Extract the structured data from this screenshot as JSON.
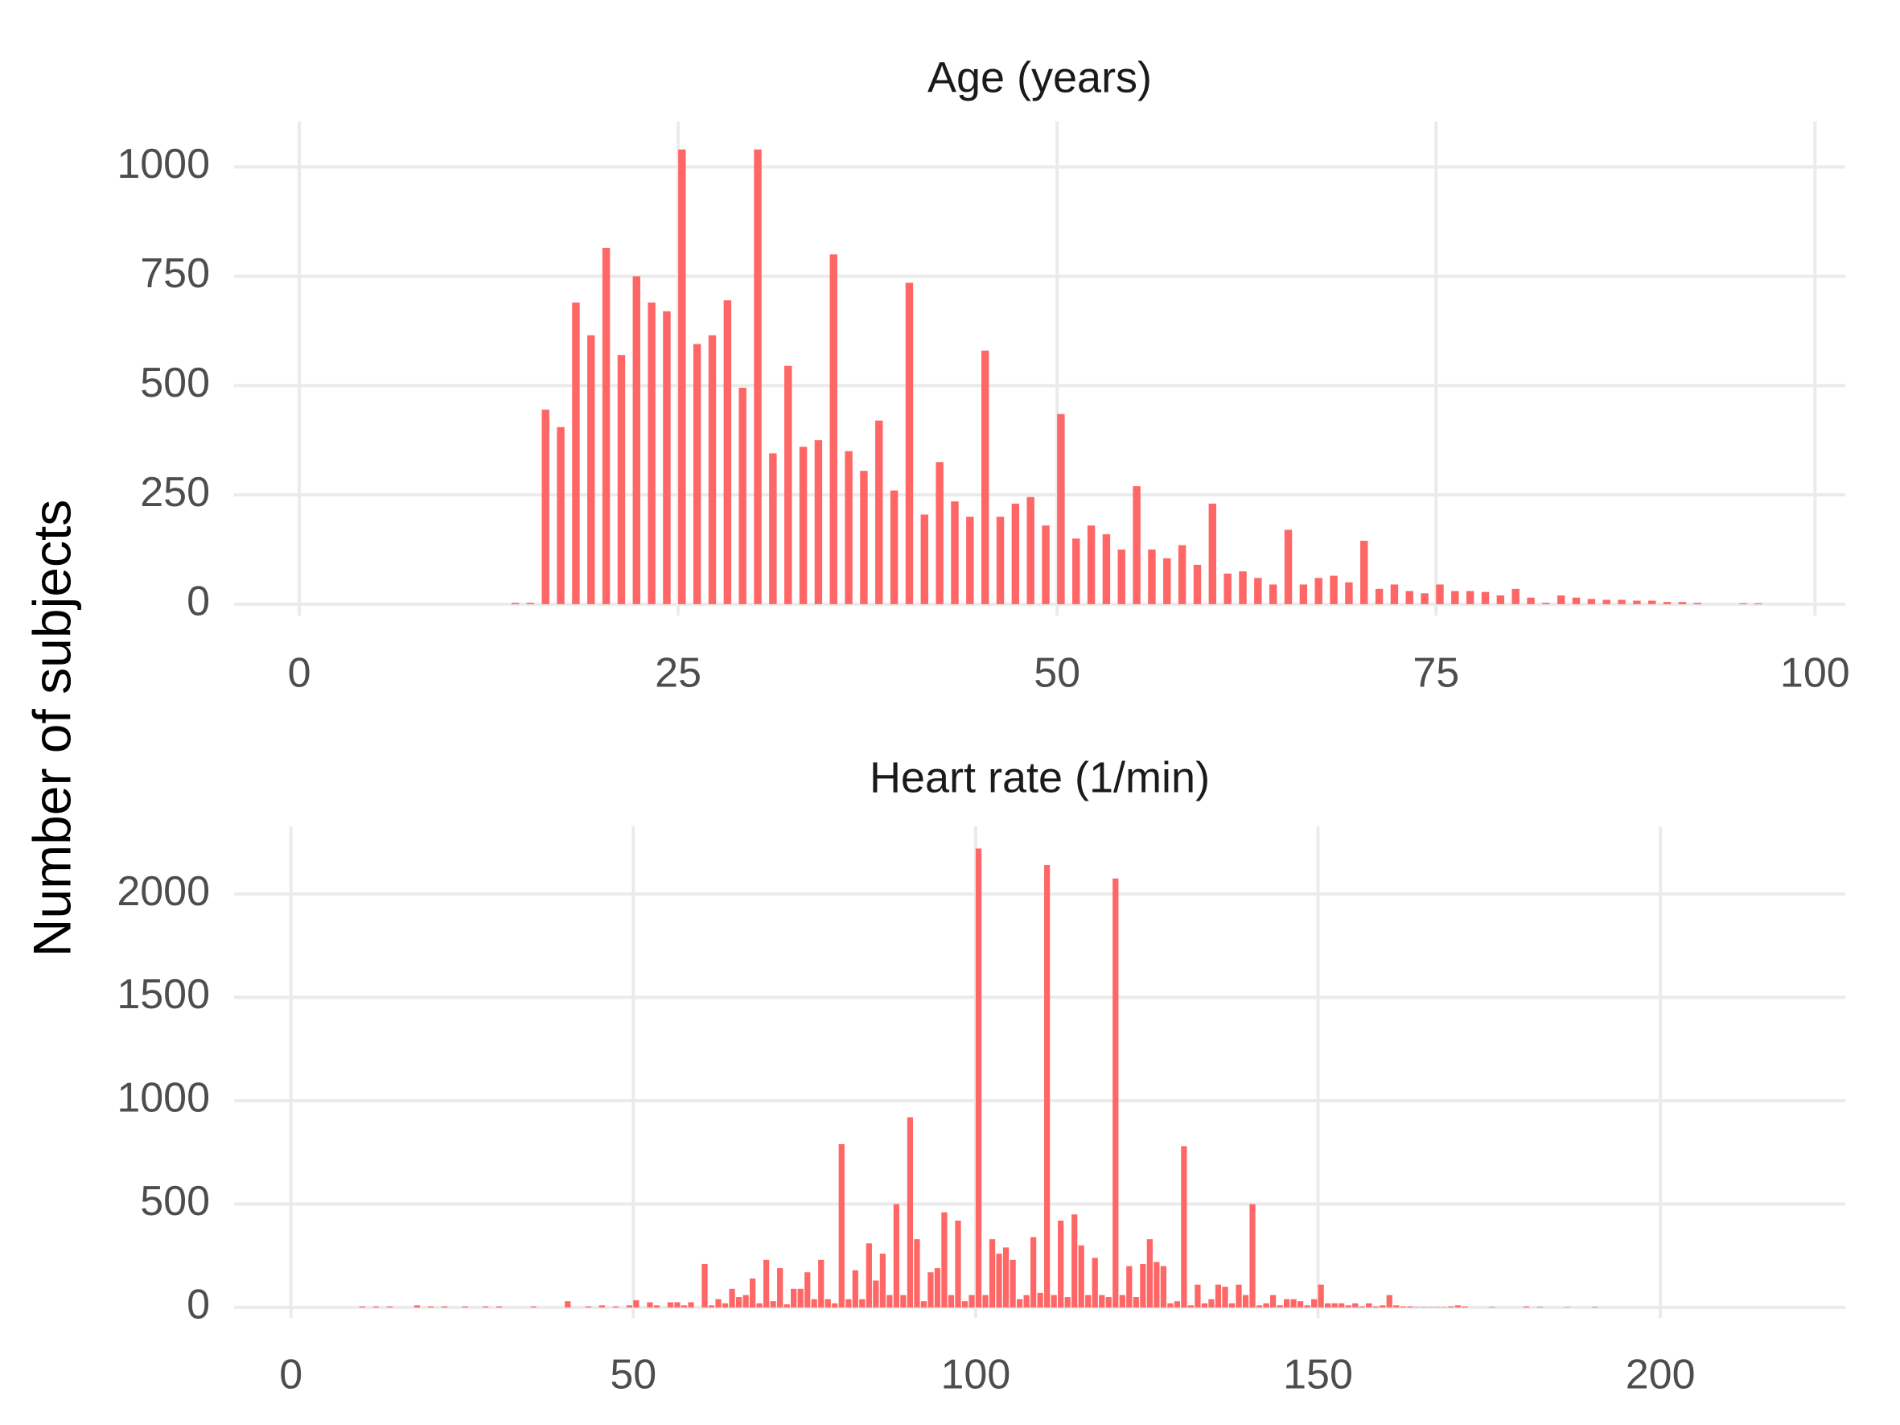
{
  "ylabel": "Number of subjects",
  "chart_data": [
    {
      "type": "bar",
      "title": "Age (years)",
      "color": "#ff6666",
      "grid": true,
      "xlim": [
        -4.3,
        102
      ],
      "xticks": [
        0,
        25,
        50,
        75,
        100
      ],
      "ylim": [
        -26,
        1104
      ],
      "yticks": [
        0,
        250,
        500,
        750,
        1000
      ],
      "x": [
        14,
        15,
        16,
        17,
        18,
        19,
        20,
        21,
        22,
        23,
        24,
        25,
        26,
        27,
        28,
        29,
        30,
        31,
        32,
        33,
        34,
        35,
        36,
        37,
        38,
        39,
        40,
        41,
        42,
        43,
        44,
        45,
        46,
        47,
        48,
        49,
        50,
        51,
        52,
        53,
        54,
        55,
        56,
        57,
        58,
        59,
        60,
        61,
        62,
        63,
        64,
        65,
        66,
        67,
        68,
        69,
        70,
        71,
        72,
        73,
        74,
        75,
        76,
        77,
        78,
        79,
        80,
        81,
        82,
        83,
        84,
        85,
        86,
        87,
        88,
        89,
        90,
        91,
        92,
        95,
        96
      ],
      "values": [
        3,
        3,
        445,
        405,
        690,
        615,
        815,
        570,
        750,
        690,
        670,
        1040,
        595,
        615,
        695,
        495,
        1040,
        345,
        545,
        360,
        375,
        800,
        350,
        305,
        420,
        260,
        735,
        205,
        325,
        235,
        200,
        580,
        200,
        230,
        245,
        180,
        435,
        150,
        180,
        160,
        125,
        270,
        125,
        105,
        135,
        90,
        230,
        70,
        75,
        60,
        45,
        170,
        45,
        60,
        65,
        50,
        145,
        35,
        45,
        30,
        25,
        45,
        30,
        30,
        28,
        20,
        35,
        15,
        3,
        20,
        15,
        12,
        10,
        10,
        8,
        8,
        5,
        5,
        3,
        2,
        2
      ]
    },
    {
      "type": "bar",
      "title": "Heart rate (1/min)",
      "color": "#ff6666",
      "grid": true,
      "xlim": [
        -8.3,
        227
      ],
      "xticks": [
        0,
        50,
        100,
        150,
        200
      ],
      "ylim": [
        -51,
        2327
      ],
      "yticks": [
        0,
        500,
        1000,
        1500,
        2000
      ],
      "x": [
        10,
        12,
        14,
        18,
        20,
        22,
        25,
        28,
        30,
        35,
        40,
        43,
        45,
        47,
        49,
        50,
        52,
        53,
        55,
        56,
        57,
        58,
        60,
        61,
        62,
        63,
        64,
        65,
        66,
        67,
        68,
        69,
        70,
        71,
        72,
        73,
        74,
        75,
        76,
        77,
        78,
        79,
        80,
        81,
        82,
        83,
        84,
        85,
        86,
        87,
        88,
        89,
        90,
        91,
        92,
        93,
        94,
        95,
        96,
        97,
        98,
        99,
        100,
        101,
        102,
        103,
        104,
        105,
        106,
        107,
        108,
        109,
        110,
        111,
        112,
        113,
        114,
        115,
        116,
        117,
        118,
        119,
        120,
        121,
        122,
        123,
        124,
        125,
        126,
        127,
        128,
        129,
        130,
        131,
        132,
        133,
        134,
        135,
        136,
        137,
        138,
        139,
        140,
        141,
        142,
        143,
        144,
        145,
        146,
        147,
        148,
        149,
        150,
        151,
        152,
        153,
        154,
        155,
        156,
        157,
        158,
        159,
        160,
        161,
        162,
        163,
        164,
        165,
        166,
        167,
        168,
        169,
        170,
        171,
        175,
        180,
        182,
        186,
        190
      ],
      "values": [
        5,
        5,
        5,
        10,
        5,
        5,
        5,
        5,
        5,
        5,
        30,
        5,
        10,
        5,
        10,
        35,
        25,
        10,
        25,
        25,
        10,
        25,
        210,
        10,
        40,
        20,
        90,
        50,
        60,
        140,
        20,
        230,
        30,
        190,
        15,
        90,
        90,
        170,
        40,
        230,
        40,
        20,
        790,
        40,
        180,
        40,
        310,
        130,
        260,
        60,
        500,
        60,
        920,
        330,
        30,
        170,
        190,
        460,
        60,
        420,
        30,
        60,
        2220,
        60,
        330,
        260,
        290,
        230,
        40,
        60,
        340,
        70,
        2140,
        60,
        420,
        50,
        450,
        300,
        60,
        240,
        60,
        50,
        2075,
        60,
        200,
        50,
        210,
        330,
        220,
        200,
        20,
        30,
        780,
        10,
        110,
        20,
        40,
        110,
        100,
        20,
        110,
        60,
        500,
        10,
        20,
        60,
        10,
        40,
        40,
        30,
        10,
        40,
        110,
        20,
        20,
        20,
        10,
        20,
        5,
        20,
        5,
        10,
        60,
        10,
        5,
        5,
        2,
        2,
        2,
        2,
        2,
        5,
        10,
        5,
        3,
        5,
        3,
        2,
        3
      ]
    }
  ]
}
